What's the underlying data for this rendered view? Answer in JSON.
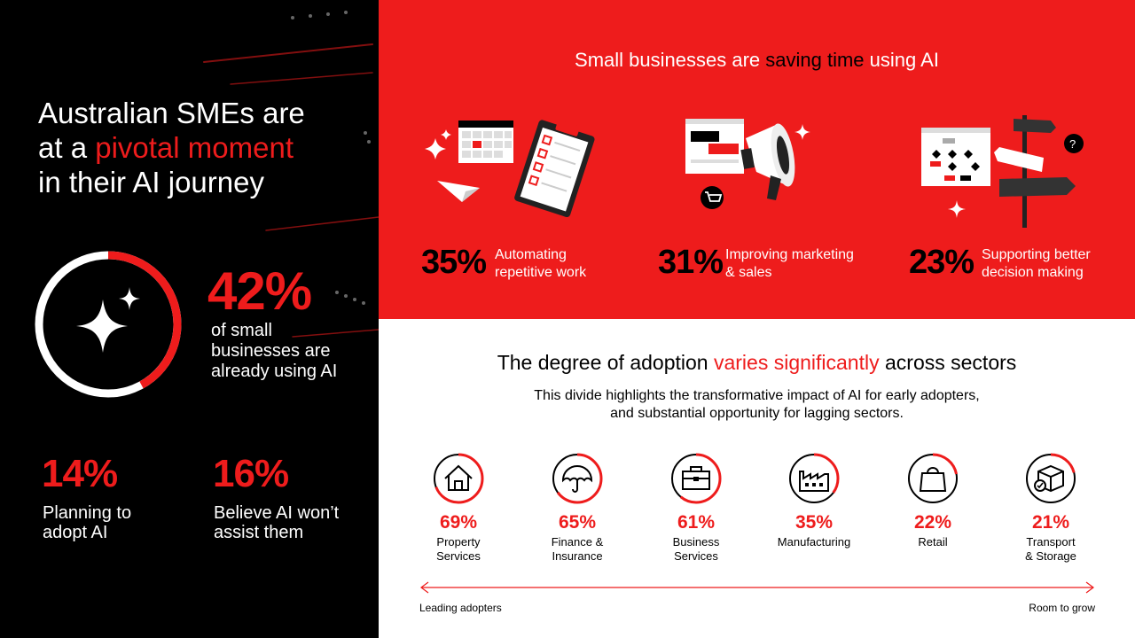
{
  "left": {
    "headline_line1": "Australian SMEs are",
    "headline_pre": "at a ",
    "headline_highlight": "pivotal moment",
    "headline_line3": "in their AI journey",
    "main_stat": {
      "value": "42%",
      "label": "of small businesses are already using AI",
      "fraction": 0.42
    },
    "stat_planning": {
      "value": "14%",
      "label": "Planning to adopt AI"
    },
    "stat_believe": {
      "value": "16%",
      "label": "Believe AI won’t assist them"
    }
  },
  "top_panel": {
    "title_pre": "Small businesses are ",
    "title_highlight": "saving time",
    "title_post": " using AI",
    "stats": [
      {
        "value": "35%",
        "label_line1": "Automating",
        "label_line2": "repetitive work"
      },
      {
        "value": "31%",
        "label_line1": "Improving marketing",
        "label_line2": "& sales"
      },
      {
        "value": "23%",
        "label_line1": "Supporting better",
        "label_line2": "decision making"
      }
    ]
  },
  "bottom_panel": {
    "title_pre": "The degree of adoption ",
    "title_highlight": "varies significantly",
    "title_post": " across sectors",
    "subtitle_line1": "This divide highlights the transformative impact of AI for early adopters,",
    "subtitle_line2": "and substantial opportunity for lagging sectors.",
    "sectors": [
      {
        "value": "69%",
        "name_line1": "Property",
        "name_line2": "Services",
        "icon": "house-icon",
        "fraction": 0.69
      },
      {
        "value": "65%",
        "name_line1": "Finance &",
        "name_line2": "Insurance",
        "icon": "umbrella-icon",
        "fraction": 0.65
      },
      {
        "value": "61%",
        "name_line1": "Business",
        "name_line2": "Services",
        "icon": "briefcase-icon",
        "fraction": 0.61
      },
      {
        "value": "35%",
        "name_line1": "Manufacturing",
        "name_line2": "",
        "icon": "factory-icon",
        "fraction": 0.35
      },
      {
        "value": "22%",
        "name_line1": "Retail",
        "name_line2": "",
        "icon": "shopping-bag-icon",
        "fraction": 0.22
      },
      {
        "value": "21%",
        "name_line1": "Transport",
        "name_line2": "& Storage",
        "icon": "delivery-box-icon",
        "fraction": 0.21
      }
    ],
    "axis_left": "Leading adopters",
    "axis_right": "Room to grow"
  },
  "colors": {
    "accent": "#ee1c1c",
    "dark": "#000000",
    "light": "#ffffff"
  }
}
